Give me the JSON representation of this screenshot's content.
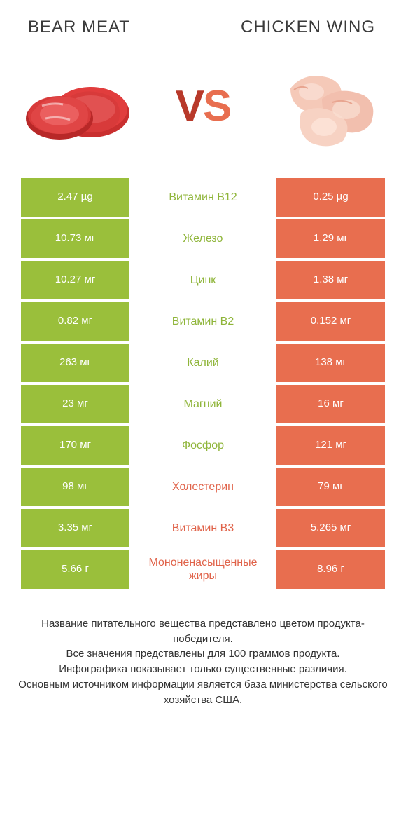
{
  "colors": {
    "green": "#9ABF3B",
    "red": "#E86E4F",
    "green_text": "#8FB53A",
    "red_text": "#E0634A",
    "vs_left": "#b8392a",
    "vs_right": "#e86e4f"
  },
  "titles": {
    "left": "BEAR MEAT",
    "right": "CHICKEN WING"
  },
  "vs": {
    "v": "V",
    "s": "S"
  },
  "rows": [
    {
      "left": "2.47 µg",
      "label": "Витамин B12",
      "right": "0.25 µg",
      "winner": "left"
    },
    {
      "left": "10.73 мг",
      "label": "Железо",
      "right": "1.29 мг",
      "winner": "left"
    },
    {
      "left": "10.27 мг",
      "label": "Цинк",
      "right": "1.38 мг",
      "winner": "left"
    },
    {
      "left": "0.82 мг",
      "label": "Витамин B2",
      "right": "0.152 мг",
      "winner": "left"
    },
    {
      "left": "263 мг",
      "label": "Калий",
      "right": "138 мг",
      "winner": "left"
    },
    {
      "left": "23 мг",
      "label": "Магний",
      "right": "16 мг",
      "winner": "left"
    },
    {
      "left": "170 мг",
      "label": "Фосфор",
      "right": "121 мг",
      "winner": "left"
    },
    {
      "left": "98 мг",
      "label": "Холестерин",
      "right": "79 мг",
      "winner": "right"
    },
    {
      "left": "3.35 мг",
      "label": "Витамин B3",
      "right": "5.265 мг",
      "winner": "right"
    },
    {
      "left": "5.66 г",
      "label": "Мононенасыщенные жиры",
      "right": "8.96 г",
      "winner": "right"
    }
  ],
  "footer": [
    "Название питательного вещества представлено цветом продукта-победителя.",
    "Все значения представлены для 100 граммов продукта.",
    "Инфографика показывает только существенные различия.",
    "Основным источником информации является база министерства сельского хозяйства США."
  ]
}
